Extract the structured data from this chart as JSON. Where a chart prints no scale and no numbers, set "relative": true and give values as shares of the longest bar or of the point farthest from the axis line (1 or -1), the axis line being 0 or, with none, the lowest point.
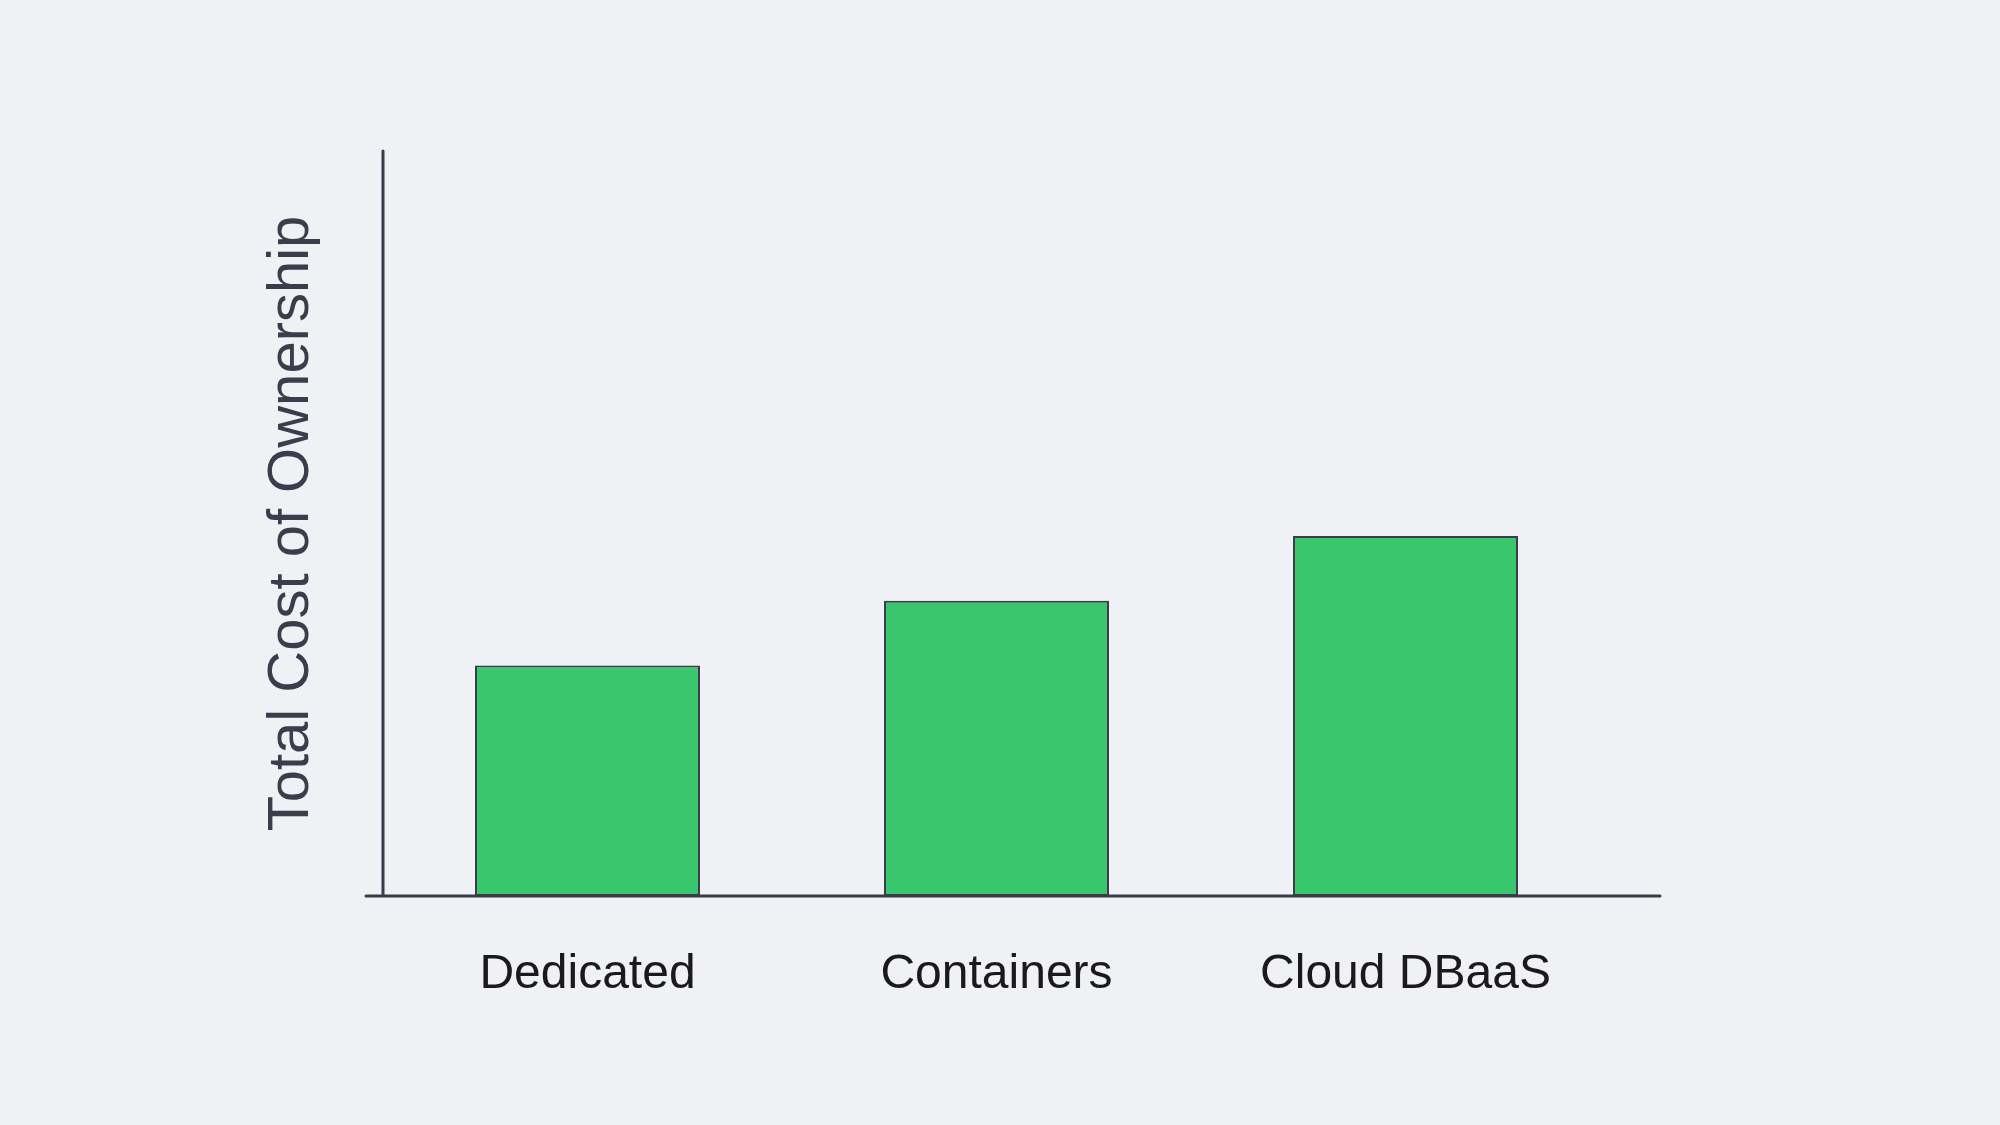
{
  "chart_data": {
    "type": "bar",
    "ylabel": "Total Cost of Ownership",
    "categories": [
      "Dedicated",
      "Containers",
      "Cloud DBaaS"
    ],
    "values": [
      0.64,
      0.82,
      1
    ],
    "color": "#38c76c",
    "relative": true
  }
}
